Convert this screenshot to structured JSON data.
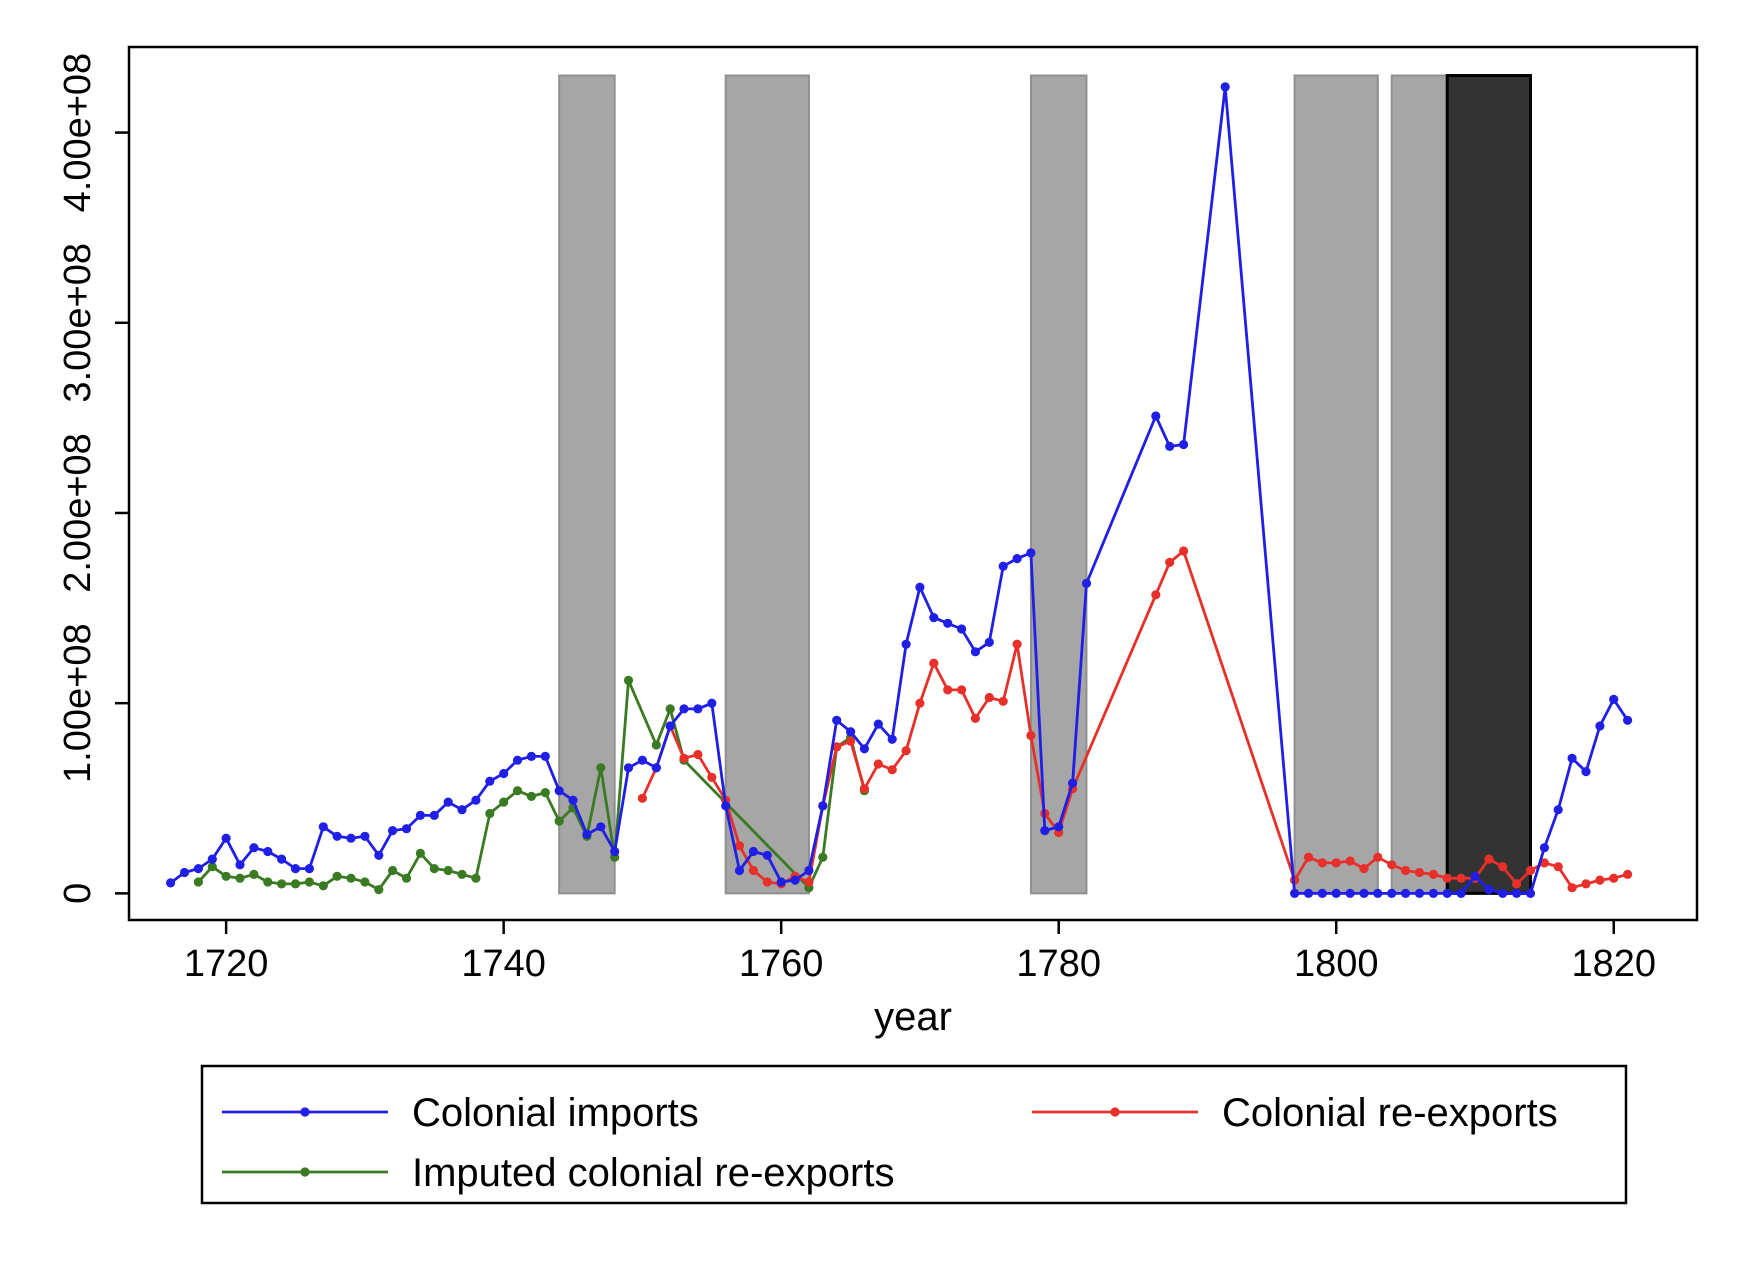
{
  "chart_data": {
    "type": "line",
    "xlabel": "year",
    "ylabel": "",
    "xlim": [
      1713,
      1826
    ],
    "ylim": [
      -14000000.0,
      445000000.0
    ],
    "x_ticks": [
      1720,
      1740,
      1760,
      1780,
      1800,
      1820
    ],
    "y_ticks": [
      0,
      100000000,
      200000000,
      300000000,
      400000000
    ],
    "y_tick_labels": [
      "0",
      "1.00e+08",
      "2.00e+08",
      "3.00e+08",
      "4.00e+08"
    ],
    "x_tick_labels": [
      "1720",
      "1740",
      "1760",
      "1780",
      "1800",
      "1820"
    ],
    "grid": false,
    "legend_position": "bottom",
    "shaded_periods": [
      {
        "start": 1744,
        "end": 1748,
        "color": "#a6a6a6"
      },
      {
        "start": 1756,
        "end": 1762,
        "color": "#a6a6a6"
      },
      {
        "start": 1778,
        "end": 1782,
        "color": "#a6a6a6"
      },
      {
        "start": 1797,
        "end": 1803,
        "color": "#a6a6a6"
      },
      {
        "start": 1804,
        "end": 1808,
        "color": "#a6a6a6"
      },
      {
        "start": 1808,
        "end": 1814,
        "color": "#333333"
      }
    ],
    "series": [
      {
        "name": "Colonial imports",
        "color": "#1f1fe6",
        "points": [
          [
            1716,
            5500000
          ],
          [
            1717,
            11000000
          ],
          [
            1718,
            13000000
          ],
          [
            1719,
            18000000
          ],
          [
            1720,
            29000000
          ],
          [
            1721,
            15000000
          ],
          [
            1722,
            24000000
          ],
          [
            1723,
            22000000
          ],
          [
            1724,
            18000000
          ],
          [
            1725,
            13000000
          ],
          [
            1726,
            13000000
          ],
          [
            1727,
            35000000
          ],
          [
            1728,
            30000000
          ],
          [
            1729,
            29000000
          ],
          [
            1730,
            30000000
          ],
          [
            1731,
            20000000
          ],
          [
            1732,
            33000000
          ],
          [
            1733,
            34000000
          ],
          [
            1734,
            41000000
          ],
          [
            1735,
            41000000
          ],
          [
            1736,
            48000000
          ],
          [
            1737,
            44000000
          ],
          [
            1738,
            49000000
          ],
          [
            1739,
            59000000
          ],
          [
            1740,
            63000000
          ],
          [
            1741,
            70000000
          ],
          [
            1742,
            72000000
          ],
          [
            1743,
            72000000
          ],
          [
            1744,
            54000000
          ],
          [
            1745,
            49000000
          ],
          [
            1746,
            31000000
          ],
          [
            1747,
            35000000
          ],
          [
            1748,
            22000000
          ],
          [
            1749,
            66000000
          ],
          [
            1750,
            70000000
          ],
          [
            1751,
            66000000
          ],
          [
            1752,
            88000000
          ],
          [
            1753,
            97000000
          ],
          [
            1754,
            97000000
          ],
          [
            1755,
            100000000
          ],
          [
            1756,
            46000000
          ],
          [
            1757,
            12000000
          ],
          [
            1758,
            22000000
          ],
          [
            1759,
            20000000
          ],
          [
            1760,
            6000000
          ],
          [
            1761,
            7000000
          ],
          [
            1762,
            12000000
          ],
          [
            1763,
            46000000
          ],
          [
            1764,
            91000000
          ],
          [
            1765,
            85000000
          ],
          [
            1766,
            76000000
          ],
          [
            1767,
            89000000
          ],
          [
            1768,
            81000000
          ],
          [
            1769,
            131000000
          ],
          [
            1770,
            161000000
          ],
          [
            1771,
            145000000
          ],
          [
            1772,
            142000000
          ],
          [
            1773,
            139000000
          ],
          [
            1774,
            127000000
          ],
          [
            1775,
            132000000
          ],
          [
            1776,
            172000000
          ],
          [
            1777,
            176000000
          ],
          [
            1778,
            179000000
          ],
          [
            1779,
            33000000
          ],
          [
            1780,
            35000000
          ],
          [
            1781,
            58000000
          ],
          [
            1782,
            163000000
          ],
          [
            1787,
            251000000
          ],
          [
            1788,
            235000000
          ],
          [
            1789,
            236000000
          ],
          [
            1792,
            424000000
          ],
          [
            1797,
            0
          ],
          [
            1798,
            0
          ],
          [
            1799,
            0
          ],
          [
            1800,
            0
          ],
          [
            1801,
            0
          ],
          [
            1802,
            0
          ],
          [
            1803,
            0
          ],
          [
            1804,
            0
          ],
          [
            1805,
            0
          ],
          [
            1806,
            0
          ],
          [
            1807,
            0
          ],
          [
            1808,
            0
          ],
          [
            1809,
            0
          ],
          [
            1810,
            9000000
          ],
          [
            1811,
            2000000
          ],
          [
            1812,
            0
          ],
          [
            1813,
            0
          ],
          [
            1814,
            0
          ],
          [
            1815,
            24000000
          ],
          [
            1816,
            44000000
          ],
          [
            1817,
            71000000
          ],
          [
            1818,
            64000000
          ],
          [
            1819,
            88000000
          ],
          [
            1820,
            102000000
          ],
          [
            1821,
            91000000
          ]
        ]
      },
      {
        "name": "Colonial re-exports",
        "color": "#e8302a",
        "points": [
          [
            1750,
            50000000
          ],
          [
            1751,
            66000000
          ],
          [
            1752,
            88000000
          ],
          [
            1753,
            71000000
          ],
          [
            1754,
            73000000
          ],
          [
            1755,
            61000000
          ],
          [
            1756,
            49000000
          ],
          [
            1757,
            25000000
          ],
          [
            1758,
            12000000
          ],
          [
            1759,
            6000000
          ],
          [
            1760,
            5000000
          ],
          [
            1761,
            9000000
          ],
          [
            1762,
            6000000
          ],
          [
            1763,
            46000000
          ],
          [
            1764,
            77000000
          ],
          [
            1765,
            80000000
          ],
          [
            1766,
            55000000
          ],
          [
            1767,
            68000000
          ],
          [
            1768,
            65000000
          ],
          [
            1769,
            75000000
          ],
          [
            1770,
            100000000
          ],
          [
            1771,
            121000000
          ],
          [
            1772,
            107000000
          ],
          [
            1773,
            107000000
          ],
          [
            1774,
            92000000
          ],
          [
            1775,
            103000000
          ],
          [
            1776,
            101000000
          ],
          [
            1777,
            131000000
          ],
          [
            1778,
            83000000
          ],
          [
            1779,
            42000000
          ],
          [
            1780,
            32000000
          ],
          [
            1781,
            55000000
          ],
          [
            1787,
            157000000
          ],
          [
            1788,
            174000000
          ],
          [
            1789,
            180000000
          ],
          [
            1797,
            7000000
          ],
          [
            1798,
            19000000
          ],
          [
            1799,
            16000000
          ],
          [
            1800,
            16000000
          ],
          [
            1801,
            17000000
          ],
          [
            1802,
            13000000
          ],
          [
            1803,
            19000000
          ],
          [
            1804,
            15000000
          ],
          [
            1805,
            12000000
          ],
          [
            1806,
            11000000
          ],
          [
            1807,
            10000000
          ],
          [
            1808,
            8000000
          ],
          [
            1809,
            8000000
          ],
          [
            1810,
            8000000
          ],
          [
            1811,
            18000000
          ],
          [
            1812,
            14000000
          ],
          [
            1813,
            5000000
          ],
          [
            1814,
            12000000
          ],
          [
            1815,
            16000000
          ],
          [
            1816,
            14000000
          ],
          [
            1817,
            3000000
          ],
          [
            1818,
            5000000
          ],
          [
            1819,
            7000000
          ],
          [
            1820,
            8000000
          ],
          [
            1821,
            10000000
          ]
        ]
      },
      {
        "name": "Imputed colonial re-exports",
        "color": "#3a7a22",
        "points": [
          [
            1718,
            6000000
          ],
          [
            1719,
            14000000
          ],
          [
            1720,
            9000000
          ],
          [
            1721,
            8000000
          ],
          [
            1722,
            10000000
          ],
          [
            1723,
            6000000
          ],
          [
            1724,
            5000000
          ],
          [
            1725,
            5000000
          ],
          [
            1726,
            6000000
          ],
          [
            1727,
            4000000
          ],
          [
            1728,
            9000000
          ],
          [
            1729,
            8000000
          ],
          [
            1730,
            6000000
          ],
          [
            1731,
            2000000
          ],
          [
            1732,
            12000000
          ],
          [
            1733,
            8000000
          ],
          [
            1734,
            21000000
          ],
          [
            1735,
            13000000
          ],
          [
            1736,
            12000000
          ],
          [
            1737,
            10000000
          ],
          [
            1738,
            8000000
          ],
          [
            1739,
            42000000
          ],
          [
            1740,
            48000000
          ],
          [
            1741,
            54000000
          ],
          [
            1742,
            51000000
          ],
          [
            1743,
            53000000
          ],
          [
            1744,
            38000000
          ],
          [
            1745,
            45000000
          ],
          [
            1746,
            30000000
          ],
          [
            1747,
            66000000
          ],
          [
            1748,
            19000000
          ],
          [
            1749,
            112000000
          ],
          [
            1751,
            78000000
          ],
          [
            1752,
            97000000
          ],
          [
            1753,
            70000000
          ],
          [
            1762,
            3000000
          ],
          [
            1763,
            19000000
          ],
          [
            1764,
            77000000
          ],
          [
            1765,
            82000000
          ],
          [
            1766,
            54000000
          ]
        ]
      }
    ]
  }
}
